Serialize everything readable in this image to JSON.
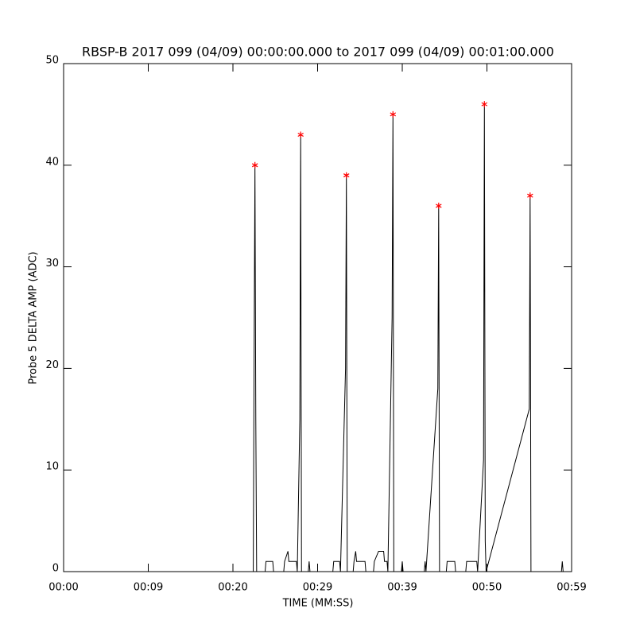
{
  "chart_data": {
    "type": "line",
    "title": "RBSP-B 2017 099 (04/09) 00:00:00.000 to 2017 099 (04/09) 00:01:00.000",
    "x_label": "TIME (MM:SS)",
    "y_label": "Probe 5 DELTA AMP (ADC)",
    "xlim": [
      0,
      60
    ],
    "ylim": [
      0,
      50
    ],
    "xticks": [
      {
        "value": 0,
        "label": "00:00"
      },
      {
        "value": 10,
        "label": "00:09"
      },
      {
        "value": 20,
        "label": "00:20"
      },
      {
        "value": 30,
        "label": "00:29"
      },
      {
        "value": 40,
        "label": "00:39"
      },
      {
        "value": 50,
        "label": "00:50"
      },
      {
        "value": 60,
        "label": "00:59"
      }
    ],
    "yticks": [
      0,
      10,
      20,
      30,
      40,
      50
    ],
    "series": [
      {
        "color": "#000000",
        "marker": "none",
        "x": [
          0,
          22.4,
          22.5,
          22.6,
          22.7,
          22.8,
          23.8,
          23.9,
          24.7,
          24.8,
          26.0,
          26.1,
          26.5,
          26.6,
          27.5,
          27.6,
          27.9,
          28.0,
          28.1,
          28.9,
          29.0,
          29.1,
          31.8,
          31.9,
          32.6,
          32.7,
          33.3,
          33.4,
          33.5,
          34.2,
          34.3,
          34.5,
          34.6,
          35.6,
          35.7,
          36.6,
          36.7,
          37.2,
          37.8,
          37.9,
          38.2,
          38.3,
          38.8,
          38.9,
          39.0,
          39.9,
          40.0,
          40.1,
          42.6,
          42.7,
          42.8,
          44.2,
          44.3,
          44.4,
          45.2,
          45.3,
          46.2,
          46.3,
          47.5,
          47.6,
          48.8,
          48.9,
          49.6,
          49.7,
          49.8,
          49.9,
          55.0,
          55.1,
          55.2,
          58.8,
          58.9,
          59.0
        ],
        "values": [
          0,
          0,
          21,
          40,
          15,
          0,
          0,
          1,
          1,
          0,
          0,
          1,
          2,
          1,
          1,
          0,
          15,
          43,
          0,
          0,
          1,
          0,
          0,
          1,
          1,
          0,
          20,
          39,
          0,
          0,
          1,
          2,
          1,
          1,
          0,
          0,
          1,
          2,
          2,
          1,
          1,
          0,
          25,
          45,
          0,
          0,
          1,
          0,
          0,
          1,
          0,
          18,
          36,
          0,
          0,
          1,
          1,
          0,
          0,
          1,
          1,
          0,
          11,
          46,
          3,
          0,
          16,
          37,
          0,
          0,
          1,
          0
        ]
      },
      {
        "color": "#ff0000",
        "marker": "star",
        "x": [
          22.6,
          28.0,
          33.4,
          38.9,
          44.3,
          49.7,
          55.1
        ],
        "values": [
          40,
          43,
          39,
          45,
          36,
          46,
          37
        ]
      }
    ]
  }
}
